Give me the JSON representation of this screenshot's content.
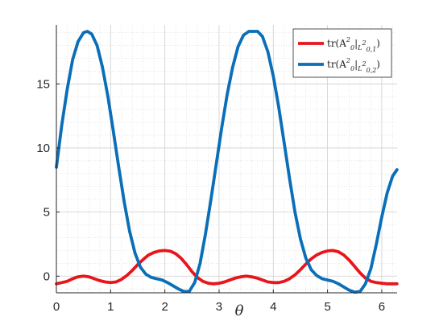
{
  "chart_data": {
    "type": "line",
    "title": "",
    "xlabel": "θ",
    "ylabel": "",
    "xlim": [
      0,
      6.2832
    ],
    "ylim": [
      -1.3,
      19.6
    ],
    "xticks": [
      0,
      1,
      2,
      3,
      4,
      5,
      6
    ],
    "yticks": [
      0,
      5,
      10,
      15
    ],
    "xtick_labels": [
      "0",
      "1",
      "2",
      "3",
      "4",
      "5",
      "6"
    ],
    "ytick_labels": [
      "0",
      "5",
      "10",
      "15"
    ],
    "grid": true,
    "minor_grid": true,
    "legend_position": "top-right",
    "legend_entries": [
      {
        "prefix": "tr(",
        "base": "A",
        "sup": "2",
        "sub": "0",
        "bar_sub": "L",
        "bar_sub_sup": "2",
        "bar_sub_sub": "0,1",
        "suffix": ")"
      },
      {
        "prefix": "tr(",
        "base": "A",
        "sup": "2",
        "sub": "0",
        "bar_sub": "L",
        "bar_sub_sup": "2",
        "bar_sub_sub": "0,2",
        "suffix": ")"
      }
    ],
    "series": [
      {
        "color": "#e8151b",
        "x": [
          0,
          0.1,
          0.2,
          0.3,
          0.4,
          0.5,
          0.6,
          0.7,
          0.8,
          0.9,
          1.0,
          1.1,
          1.2,
          1.3,
          1.4,
          1.5,
          1.6,
          1.7,
          1.8,
          1.9,
          2.0,
          2.1,
          2.2,
          2.3,
          2.4,
          2.5,
          2.6,
          2.7,
          2.8,
          2.9,
          3.0,
          3.1,
          3.2,
          3.3,
          3.4,
          3.5,
          3.6,
          3.7,
          3.8,
          3.9,
          4.0,
          4.1,
          4.2,
          4.3,
          4.4,
          4.5,
          4.6,
          4.7,
          4.8,
          4.9,
          5.0,
          5.1,
          5.2,
          5.3,
          5.4,
          5.5,
          5.6,
          5.7,
          5.8,
          5.9,
          6.0,
          6.1,
          6.2,
          6.28
        ],
        "y": [
          -0.6,
          -0.5,
          -0.4,
          -0.2,
          -0.05,
          0.0,
          -0.05,
          -0.2,
          -0.35,
          -0.45,
          -0.5,
          -0.45,
          -0.25,
          0.05,
          0.45,
          0.9,
          1.3,
          1.65,
          1.85,
          1.97,
          2.0,
          1.95,
          1.75,
          1.4,
          0.9,
          0.35,
          -0.1,
          -0.4,
          -0.55,
          -0.6,
          -0.55,
          -0.45,
          -0.3,
          -0.15,
          -0.05,
          0.0,
          -0.05,
          -0.15,
          -0.3,
          -0.45,
          -0.5,
          -0.5,
          -0.4,
          -0.2,
          0.1,
          0.5,
          0.95,
          1.35,
          1.65,
          1.85,
          1.97,
          2.0,
          1.9,
          1.65,
          1.25,
          0.75,
          0.25,
          -0.15,
          -0.4,
          -0.5,
          -0.55,
          -0.6,
          -0.6,
          -0.6
        ]
      },
      {
        "color": "#0a6eb8",
        "x": [
          0,
          0.1,
          0.2,
          0.3,
          0.4,
          0.5,
          0.57,
          0.65,
          0.75,
          0.85,
          0.95,
          1.05,
          1.15,
          1.25,
          1.35,
          1.45,
          1.55,
          1.65,
          1.75,
          1.85,
          1.95,
          2.05,
          2.15,
          2.25,
          2.35,
          2.45,
          2.55,
          2.65,
          2.75,
          2.85,
          2.95,
          3.05,
          3.15,
          3.25,
          3.35,
          3.45,
          3.55,
          3.65,
          3.71,
          3.8,
          3.9,
          4.0,
          4.1,
          4.2,
          4.3,
          4.4,
          4.5,
          4.6,
          4.7,
          4.8,
          4.9,
          5.0,
          5.1,
          5.2,
          5.3,
          5.4,
          5.5,
          5.6,
          5.7,
          5.8,
          5.9,
          6.0,
          6.1,
          6.2,
          6.28
        ],
        "y": [
          8.5,
          11.8,
          14.6,
          16.9,
          18.3,
          19.0,
          19.1,
          18.9,
          18.0,
          16.3,
          14.0,
          11.3,
          8.5,
          5.8,
          3.5,
          1.8,
          0.7,
          0.15,
          -0.1,
          -0.2,
          -0.3,
          -0.5,
          -0.75,
          -1.0,
          -1.2,
          -1.2,
          -0.5,
          1.0,
          3.3,
          6.0,
          8.8,
          11.6,
          14.2,
          16.3,
          17.9,
          18.8,
          19.1,
          19.1,
          19.1,
          18.7,
          17.5,
          15.6,
          13.2,
          10.4,
          7.6,
          5.0,
          2.9,
          1.4,
          0.5,
          0.05,
          -0.2,
          -0.3,
          -0.4,
          -0.6,
          -0.85,
          -1.1,
          -1.25,
          -1.2,
          -0.6,
          0.6,
          2.5,
          4.6,
          6.5,
          7.8,
          8.3
        ]
      }
    ]
  }
}
